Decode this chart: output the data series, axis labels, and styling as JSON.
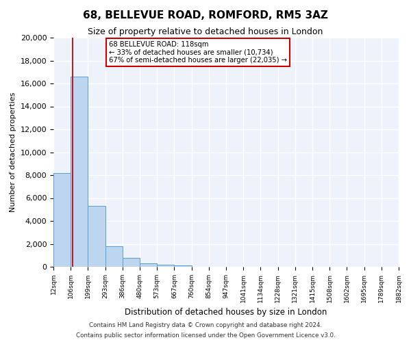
{
  "title": "68, BELLEVUE ROAD, ROMFORD, RM5 3AZ",
  "subtitle": "Size of property relative to detached houses in London",
  "xlabel": "Distribution of detached houses by size in London",
  "ylabel": "Number of detached properties",
  "bin_labels": [
    "12sqm",
    "106sqm",
    "199sqm",
    "293sqm",
    "386sqm",
    "480sqm",
    "573sqm",
    "667sqm",
    "760sqm",
    "854sqm",
    "947sqm",
    "1041sqm",
    "1134sqm",
    "1228sqm",
    "1321sqm",
    "1415sqm",
    "1508sqm",
    "1602sqm",
    "1695sqm",
    "1789sqm",
    "1882sqm"
  ],
  "bar_heights": [
    8200,
    16600,
    5300,
    1800,
    750,
    300,
    150,
    100,
    0,
    0,
    0,
    0,
    0,
    0,
    0,
    0,
    0,
    0,
    0,
    0
  ],
  "bar_color": "#bdd5ee",
  "bar_edge_color": "#5a9fd4",
  "property_size_bin": 1.13,
  "annotation_title": "68 BELLEVUE ROAD: 118sqm",
  "annotation_line1": "← 33% of detached houses are smaller (10,734)",
  "annotation_line2": "67% of semi-detached houses are larger (22,035) →",
  "annotation_box_color": "#ffffff",
  "annotation_box_edge": "#cc0000",
  "ylim": [
    0,
    20000
  ],
  "yticks": [
    0,
    2000,
    4000,
    6000,
    8000,
    10000,
    12000,
    14000,
    16000,
    18000,
    20000
  ],
  "axes_bg_color": "#eef2fa",
  "fig_bg_color": "#ffffff",
  "grid_color": "#ffffff",
  "footer_line1": "Contains HM Land Registry data © Crown copyright and database right 2024.",
  "footer_line2": "Contains public sector information licensed under the Open Government Licence v3.0."
}
